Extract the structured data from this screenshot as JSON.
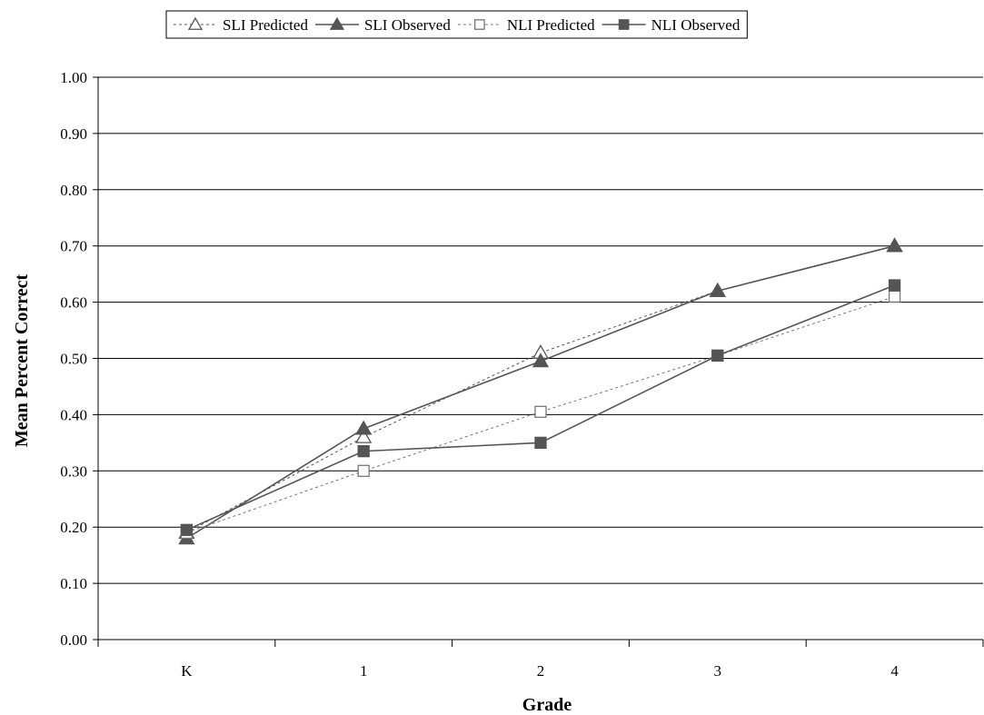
{
  "chart_data": {
    "type": "line",
    "title": "",
    "xlabel": "Grade",
    "ylabel": "Mean Percent Correct",
    "categories": [
      "K",
      "1",
      "2",
      "3",
      "4"
    ],
    "ylim": [
      0,
      1
    ],
    "yticks": [
      "0.00",
      "0.10",
      "0.20",
      "0.30",
      "0.40",
      "0.50",
      "0.60",
      "0.70",
      "0.80",
      "0.90",
      "1.00"
    ],
    "grid": true,
    "legend_position": "top",
    "series": [
      {
        "name": "SLI Predicted",
        "values": [
          0.19,
          0.36,
          0.51,
          0.62,
          0.7
        ],
        "line": "dotted",
        "marker": "triangle-open",
        "color": "#555555"
      },
      {
        "name": "SLI Observed",
        "values": [
          0.18,
          0.375,
          0.495,
          0.62,
          0.7
        ],
        "line": "solid",
        "marker": "triangle-filled",
        "color": "#555555"
      },
      {
        "name": "NLI Predicted",
        "values": [
          0.19,
          0.3,
          0.405,
          0.505,
          0.61
        ],
        "line": "dotted",
        "marker": "square-open",
        "color": "#777777"
      },
      {
        "name": "NLI Observed",
        "values": [
          0.195,
          0.335,
          0.35,
          0.505,
          0.63
        ],
        "line": "solid",
        "marker": "square-filled",
        "color": "#555555"
      }
    ]
  }
}
